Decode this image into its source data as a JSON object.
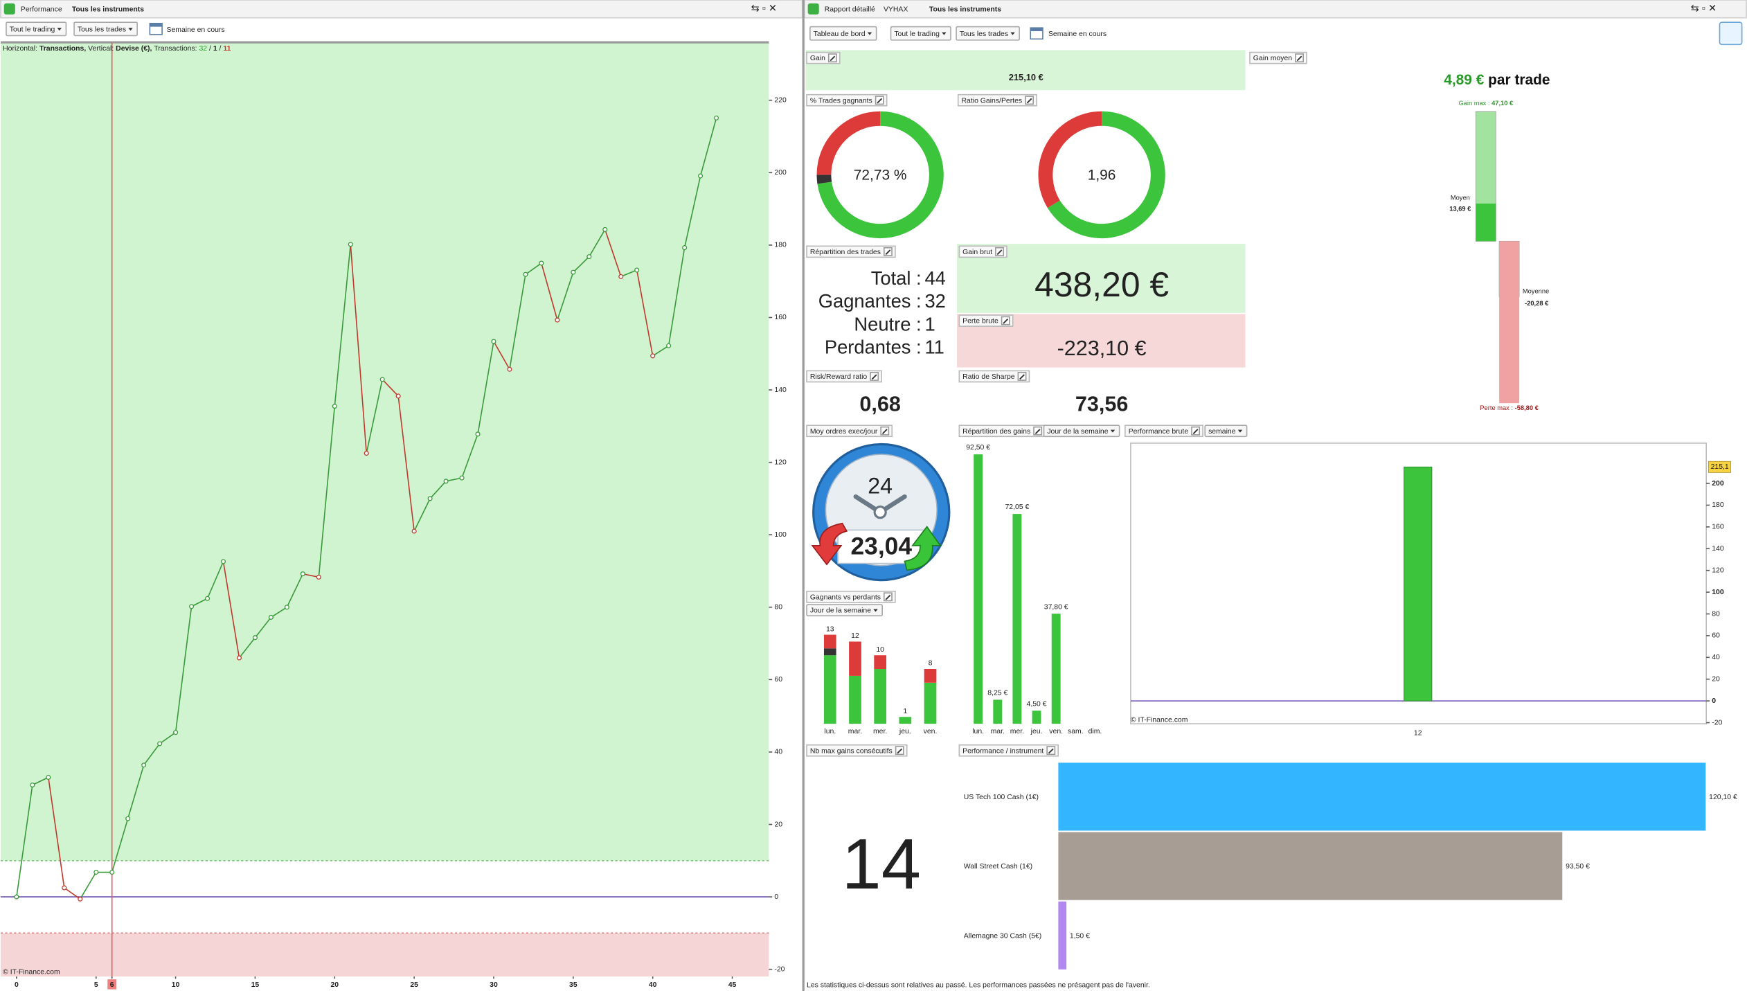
{
  "left_panel": {
    "tab": "Performance",
    "instruments": "Tous les instruments",
    "trading_filter": "Tout le trading",
    "trades_filter": "Tous les trades",
    "period": "Semaine en cours",
    "legend": {
      "h_label": "Horizontal:",
      "h_value": "Transactions,",
      "v_label": "Vertical:",
      "v_value": "Devise (€),",
      "t_label": "Transactions:",
      "winners": 32,
      "separator": "/",
      "neutral": 1,
      "losers": 11
    },
    "copyright": "© IT-Finance.com"
  },
  "right_panel": {
    "tab": "Rapport détaillé",
    "account": "VYHAX",
    "instruments": "Tous les instruments",
    "view": "Tableau de bord",
    "trading_filter": "Tout le trading",
    "trades_filter": "Tous les trades",
    "period": "Semaine en cours",
    "disclaimer": "Les statistiques ci-dessus sont relatives au passé. Les performances passées ne présagent pas de l'avenir."
  },
  "widgets": {
    "gain": {
      "title": "Gain",
      "value": "215,10 €"
    },
    "trade_split": {
      "title": "Répartition des trades",
      "rows": [
        {
          "label": "Total :",
          "value": 44
        },
        {
          "label": "Gagnantes :",
          "value": 32
        },
        {
          "label": "Neutre :",
          "value": 1
        },
        {
          "label": "Perdantes :",
          "value": 11
        }
      ]
    },
    "gross_gain": {
      "title": "Gain brut",
      "value": "438,20 €"
    },
    "gross_loss": {
      "title": "Perte brute",
      "value": "-223,10 €"
    },
    "risk_reward": {
      "title": "Risk/Reward ratio",
      "value": "0,68"
    },
    "sharpe": {
      "title": "Ratio de Sharpe",
      "value": "73,56"
    },
    "orders_per_day": {
      "title": "Moy ordres exec/jour",
      "value": "23,04",
      "clock": "24"
    },
    "max_consecutive": {
      "title": "Nb max gains consécutifs",
      "value": "14"
    }
  },
  "chart_data": [
    {
      "type": "line",
      "x": [
        0,
        1,
        2,
        3,
        4,
        5,
        6,
        7,
        8,
        9,
        10,
        11,
        12,
        13,
        14,
        15,
        16,
        17,
        18,
        19,
        20,
        21,
        22,
        23,
        24,
        25,
        26,
        27,
        28,
        29,
        30,
        31,
        32,
        33,
        34,
        35,
        36,
        37,
        38,
        39,
        40,
        41,
        42,
        43,
        44
      ],
      "series": [
        {
          "values": [
            0,
            30.9,
            33,
            2.5,
            -0.6,
            6.8,
            6.8,
            21.6,
            36.4,
            42.3,
            45.4,
            80.2,
            82.4,
            92.6,
            66,
            71.6,
            77.2,
            80,
            89.2,
            88.3,
            135.5,
            180.2,
            122.5,
            142.9,
            138.3,
            101,
            110,
            114.8,
            115.7,
            127.8,
            153.4,
            145.7,
            171.9,
            175,
            159.3,
            172.5,
            176.8,
            184.3,
            171.3,
            173.1,
            149.4,
            152.2,
            179.3,
            199.1,
            215.1
          ],
          "color": "#3a9a3a",
          "down_color": "#c0392b"
        }
      ],
      "xlim": [
        -1,
        47.3
      ],
      "ylim": [
        -22,
        236
      ],
      "xticks": [
        0,
        5,
        6,
        10,
        15,
        20,
        25,
        30,
        35,
        40,
        45
      ],
      "yticks": [
        -20,
        0,
        20,
        40,
        60,
        80,
        100,
        120,
        140,
        160,
        180,
        200,
        220
      ],
      "highlight_x": 6,
      "profit_zone_from": 10,
      "loss_zone_below": -10
    },
    {
      "type": "gain_range",
      "title": "Gain moyen",
      "headline": {
        "value": 4.89,
        "label": "4,89 €",
        "suffix": "par trade"
      },
      "bars": [
        {
          "name": "Gain max :",
          "value": 47.1,
          "label": "47,10 €",
          "color": "#a3e3a0"
        },
        {
          "name": "Moyen",
          "value": 13.69,
          "label": "13,69 €",
          "color": "#3cc43c"
        },
        {
          "name": "Moyenne",
          "value": -20.28,
          "label": "-20,28 €",
          "color": "#dd3a3a"
        },
        {
          "name": "Perte max :",
          "value": -58.8,
          "label": "-58,80 €",
          "color": "#f0a2a2"
        }
      ],
      "ylim": [
        -62,
        51.2
      ]
    },
    {
      "type": "donut",
      "title": "% Trades gagnants",
      "values": [
        32,
        1,
        11
      ],
      "colors": [
        "#3cc43c",
        "#333333",
        "#dd3a3a"
      ],
      "center": {
        "value": 72.73,
        "label": "72,73 %"
      }
    },
    {
      "type": "donut",
      "title": "Ratio Gains/Pertes",
      "values": [
        438.2,
        223.1
      ],
      "colors": [
        "#3cc43c",
        "#dd3a3a"
      ],
      "center": {
        "value": 1.96,
        "label": "1,96"
      }
    },
    {
      "type": "stacked_bar",
      "title": "Gagnants vs perdants",
      "selector": "Jour de la semaine",
      "categories": [
        "lun.",
        "mar.",
        "mer.",
        "jeu.",
        "ven."
      ],
      "series": [
        {
          "color": "#3cc43c",
          "values": [
            10,
            7,
            8,
            1,
            6
          ]
        },
        {
          "color": "#333333",
          "values": [
            1,
            0,
            0,
            0,
            0
          ]
        },
        {
          "color": "#dd3a3a",
          "values": [
            2,
            5,
            2,
            0,
            2
          ]
        }
      ],
      "totals": [
        13,
        12,
        10,
        1,
        8
      ],
      "ylim": [
        0,
        16
      ]
    },
    {
      "type": "bar",
      "title": "Répartition des gains",
      "selector": "Jour de la semaine",
      "categories": [
        "lun.",
        "mar.",
        "mer.",
        "jeu.",
        "ven.",
        "sam.",
        "dim."
      ],
      "values": [
        92.5,
        8.25,
        72.05,
        4.5,
        37.8,
        null,
        null
      ],
      "value_labels": [
        "92,50 €",
        "8,25 €",
        "72,05 €",
        "4,50 €",
        "37,80 €",
        null,
        null
      ],
      "color": "#3cc43c",
      "ylim": [
        0,
        96
      ]
    },
    {
      "type": "bar",
      "title": "Performance brute",
      "selector": "semaine",
      "categories": [
        "12"
      ],
      "values": [
        215.1
      ],
      "value_labels": [
        "215,1"
      ],
      "color": "#3cc43c",
      "ylim": [
        -21,
        237
      ],
      "yticks": [
        -20,
        0,
        20,
        40,
        60,
        80,
        100,
        120,
        140,
        160,
        180,
        200
      ]
    },
    {
      "type": "hbar",
      "title": "Performance / instrument",
      "categories": [
        "US Tech 100 Cash (1€)",
        "Wall Street Cash (1€)",
        "Allemagne 30 Cash (5€)"
      ],
      "values": [
        120.1,
        93.5,
        1.5
      ],
      "value_labels": [
        "120,10 €",
        "93,50 €",
        "1,50 €"
      ],
      "colors": [
        "#33b5ff",
        "#a89d94",
        "#b088f0"
      ],
      "xlim": [
        0,
        120
      ]
    }
  ]
}
